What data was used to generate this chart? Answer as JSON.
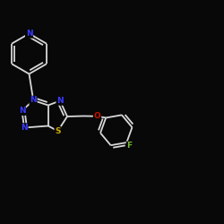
{
  "background_color": "#080808",
  "bond_color": "#d8d8d8",
  "atom_colors": {
    "N": "#3a3aff",
    "S": "#ccaa00",
    "O": "#cc1100",
    "F": "#77bb33",
    "C": "#d8d8d8"
  },
  "figsize": [
    2.5,
    2.5
  ],
  "dpi": 100
}
